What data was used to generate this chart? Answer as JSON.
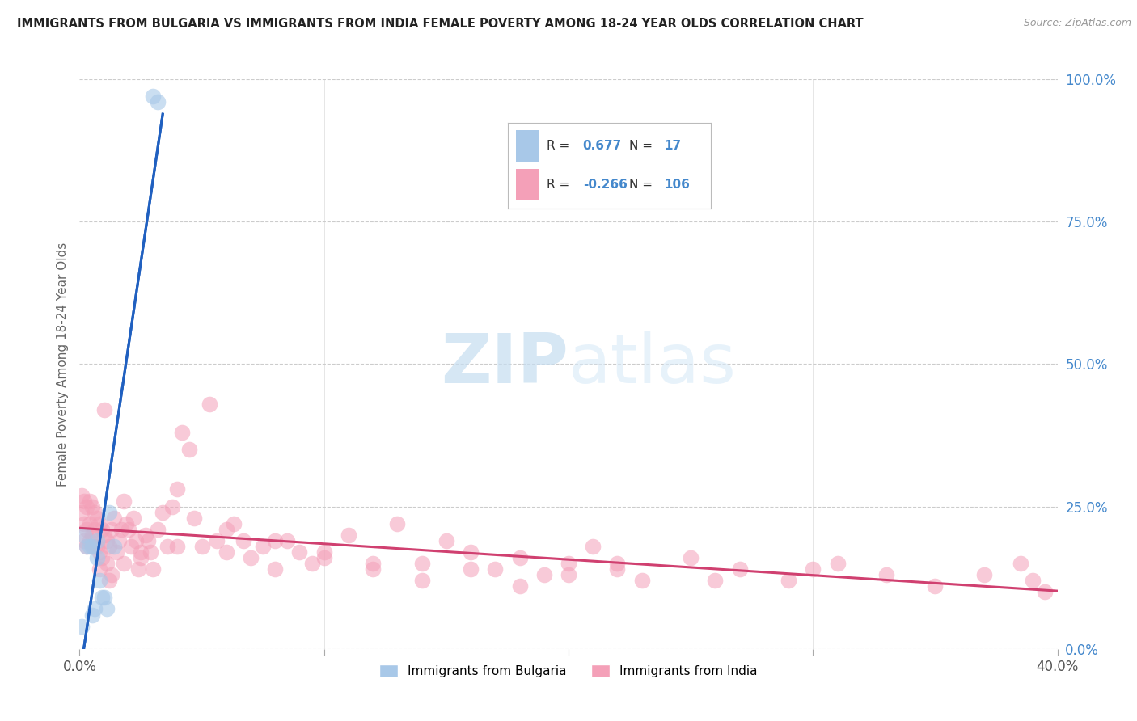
{
  "title": "IMMIGRANTS FROM BULGARIA VS IMMIGRANTS FROM INDIA FEMALE POVERTY AMONG 18-24 YEAR OLDS CORRELATION CHART",
  "source": "Source: ZipAtlas.com",
  "ylabel": "Female Poverty Among 18-24 Year Olds",
  "xlim": [
    0.0,
    0.4
  ],
  "ylim": [
    0.0,
    1.0
  ],
  "xticks": [
    0.0,
    0.4
  ],
  "xtick_labels": [
    "0.0%",
    "40.0%"
  ],
  "yticks_right": [
    0.0,
    0.25,
    0.5,
    0.75,
    1.0
  ],
  "ytick_labels_right": [
    "0.0%",
    "25.0%",
    "50.0%",
    "75.0%",
    "100.0%"
  ],
  "watermark_zip": "ZIP",
  "watermark_atlas": "atlas",
  "legend_R_bulgaria": "0.677",
  "legend_N_bulgaria": "17",
  "legend_R_india": "-0.266",
  "legend_N_india": "106",
  "color_bulgaria": "#a8c8e8",
  "color_india": "#f4a0b8",
  "trendline_bulgaria": "#2060c0",
  "trendline_india": "#d04070",
  "bulgaria_x": [
    0.001,
    0.002,
    0.003,
    0.004,
    0.005,
    0.005,
    0.006,
    0.007,
    0.007,
    0.008,
    0.009,
    0.01,
    0.011,
    0.012,
    0.014,
    0.03,
    0.032
  ],
  "bulgaria_y": [
    0.04,
    0.2,
    0.18,
    0.18,
    0.18,
    0.06,
    0.07,
    0.19,
    0.16,
    0.12,
    0.09,
    0.09,
    0.07,
    0.24,
    0.18,
    0.97,
    0.96
  ],
  "india_x": [
    0.001,
    0.001,
    0.002,
    0.002,
    0.002,
    0.003,
    0.003,
    0.003,
    0.004,
    0.004,
    0.004,
    0.005,
    0.005,
    0.005,
    0.006,
    0.006,
    0.006,
    0.007,
    0.007,
    0.008,
    0.008,
    0.009,
    0.009,
    0.01,
    0.01,
    0.011,
    0.011,
    0.012,
    0.013,
    0.013,
    0.014,
    0.015,
    0.016,
    0.017,
    0.018,
    0.019,
    0.02,
    0.021,
    0.022,
    0.023,
    0.024,
    0.025,
    0.027,
    0.028,
    0.029,
    0.03,
    0.032,
    0.034,
    0.036,
    0.038,
    0.04,
    0.042,
    0.045,
    0.047,
    0.05,
    0.053,
    0.056,
    0.06,
    0.063,
    0.067,
    0.07,
    0.075,
    0.08,
    0.085,
    0.09,
    0.095,
    0.1,
    0.11,
    0.12,
    0.13,
    0.14,
    0.15,
    0.16,
    0.17,
    0.18,
    0.19,
    0.2,
    0.21,
    0.22,
    0.23,
    0.25,
    0.27,
    0.29,
    0.31,
    0.33,
    0.35,
    0.37,
    0.385,
    0.39,
    0.395,
    0.3,
    0.26,
    0.22,
    0.2,
    0.18,
    0.16,
    0.14,
    0.12,
    0.1,
    0.08,
    0.06,
    0.04,
    0.025,
    0.018,
    0.012,
    0.008
  ],
  "india_y": [
    0.27,
    0.24,
    0.26,
    0.22,
    0.19,
    0.25,
    0.21,
    0.18,
    0.26,
    0.22,
    0.19,
    0.25,
    0.2,
    0.18,
    0.24,
    0.21,
    0.18,
    0.23,
    0.18,
    0.22,
    0.17,
    0.21,
    0.16,
    0.2,
    0.42,
    0.19,
    0.15,
    0.18,
    0.13,
    0.21,
    0.23,
    0.17,
    0.19,
    0.21,
    0.26,
    0.22,
    0.21,
    0.18,
    0.23,
    0.19,
    0.14,
    0.17,
    0.2,
    0.19,
    0.17,
    0.14,
    0.21,
    0.24,
    0.18,
    0.25,
    0.28,
    0.38,
    0.35,
    0.23,
    0.18,
    0.43,
    0.19,
    0.17,
    0.22,
    0.19,
    0.16,
    0.18,
    0.14,
    0.19,
    0.17,
    0.15,
    0.16,
    0.2,
    0.14,
    0.22,
    0.15,
    0.19,
    0.17,
    0.14,
    0.16,
    0.13,
    0.15,
    0.18,
    0.14,
    0.12,
    0.16,
    0.14,
    0.12,
    0.15,
    0.13,
    0.11,
    0.13,
    0.15,
    0.12,
    0.1,
    0.14,
    0.12,
    0.15,
    0.13,
    0.11,
    0.14,
    0.12,
    0.15,
    0.17,
    0.19,
    0.21,
    0.18,
    0.16,
    0.15,
    0.12,
    0.14
  ]
}
